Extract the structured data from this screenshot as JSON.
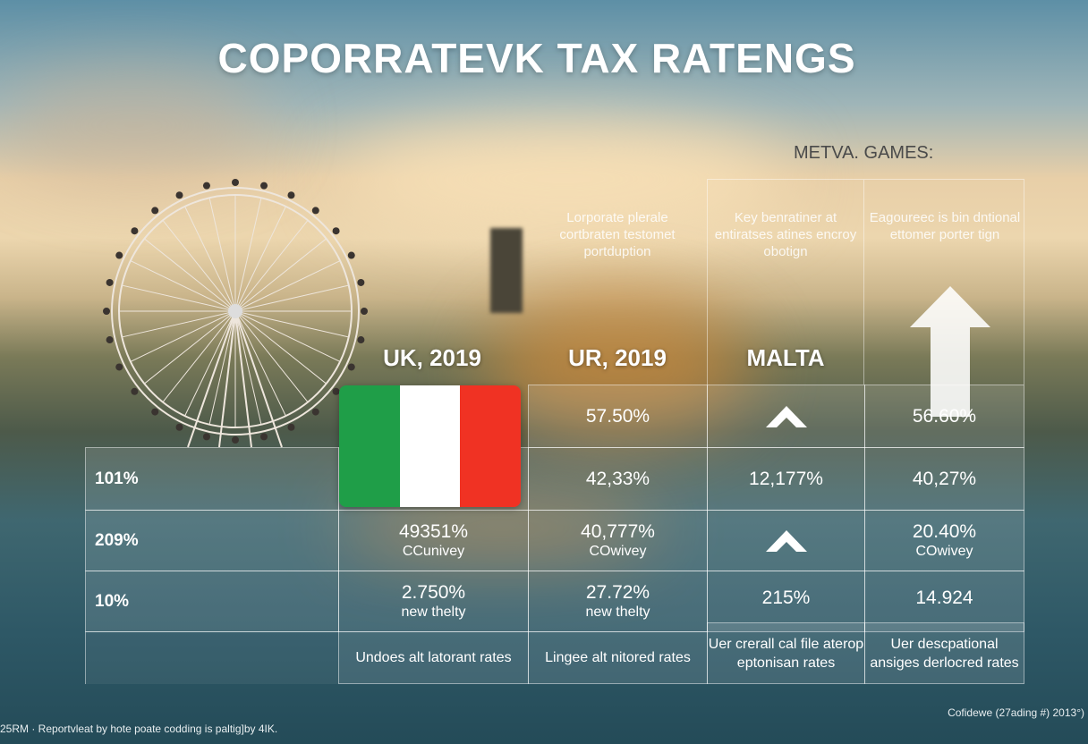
{
  "title": "COPORRATEVK TAX RATENGS",
  "subtitle": "METVA. GAMES:",
  "descriptions": [
    "Lorporate plerale cortbraten testomet portduption",
    "Key benratiner at entiratses atines encroy obotign",
    "Eagoureec is bin dntional ettomer porter tign"
  ],
  "columns": [
    "UK, 2019",
    "UR, 2019",
    "MALTA"
  ],
  "flag": {
    "name": "italy-flag",
    "colors": [
      "#1f9e48",
      "#ffffff",
      "#f03223"
    ]
  },
  "rows": [
    {
      "label": "",
      "cells": [
        "57.50%",
        "chevron-up-icon",
        "56.60%"
      ]
    },
    {
      "label": "101%",
      "cells": [
        "42,33%",
        "12,177%",
        "40,27%"
      ]
    },
    {
      "label": "209%",
      "cells": [
        {
          "value": "49351%",
          "note": "CCunivey"
        },
        {
          "value": "40,777%",
          "note": "COwivey"
        },
        "chevron-up-icon",
        {
          "value": "20.40%",
          "note": "COwivey"
        }
      ]
    },
    {
      "label": "10%",
      "cells": [
        {
          "value": "2.750%",
          "note": "new thelty"
        },
        {
          "value": "27.72%",
          "note": "new thelty"
        },
        {
          "value": "215%",
          "note": ""
        },
        {
          "value": "14.924",
          "note": ""
        }
      ]
    },
    {
      "label": "",
      "cells": [
        "Undoes alt latorant rates",
        "Lingee alt nitored rates",
        "Uer crerall cal file aterop eptonisan rates",
        "Uer descpational ansiges derlocred rates"
      ]
    }
  ],
  "footer_left": "25RM · Reportvleat by hote poate codding is paltig]by 4IK.",
  "footer_right": "Cofidewe (27ading #) 2013°)"
}
